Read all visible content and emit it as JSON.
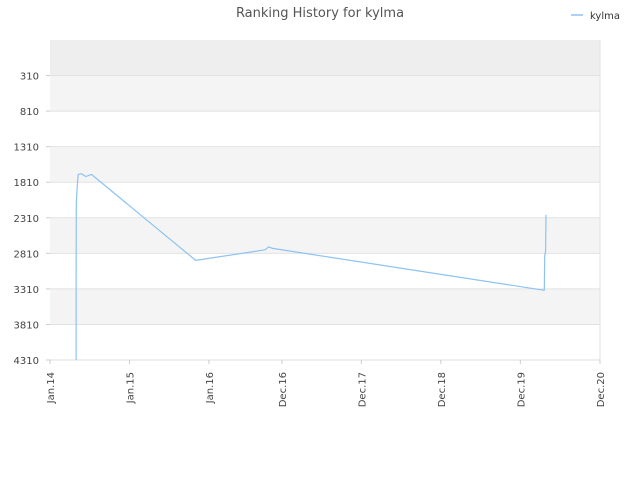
{
  "chart_data": {
    "type": "line",
    "title": "Ranking History for kylma",
    "xlabel": "",
    "ylabel": "",
    "x_tick_labels": [
      "Jan.14",
      "Jan.15",
      "Jan.16",
      "Dec.16",
      "Dec.17",
      "Dec.18",
      "Dec.19",
      "Dec.20"
    ],
    "x_tick_dates": [
      "2014-01-01",
      "2015-01-01",
      "2016-01-01",
      "2016-12-01",
      "2017-12-01",
      "2018-12-01",
      "2019-12-01",
      "2020-12-01"
    ],
    "y_tick_labels": [
      "310",
      "810",
      "1310",
      "1810",
      "2310",
      "2810",
      "3310",
      "3810",
      "4310"
    ],
    "y_ticks": [
      310,
      810,
      1310,
      1810,
      2310,
      2810,
      3310,
      3810,
      4310
    ],
    "ylim": [
      -190,
      4310
    ],
    "y_inverted": true,
    "grid": true,
    "legend_position": "top-right",
    "series": [
      {
        "name": "kylma",
        "color": "#8cc3f2",
        "points": [
          [
            "2014-05-01",
            4310
          ],
          [
            "2014-05-01",
            3300
          ],
          [
            "2014-05-02",
            2100
          ],
          [
            "2014-05-05",
            1920
          ],
          [
            "2014-05-10",
            1700
          ],
          [
            "2014-05-25",
            1690
          ],
          [
            "2014-06-15",
            1730
          ],
          [
            "2014-07-10",
            1700
          ],
          [
            "2015-11-01",
            2910
          ],
          [
            "2016-09-15",
            2760
          ],
          [
            "2016-10-01",
            2720
          ],
          [
            "2016-10-20",
            2740
          ],
          [
            "2020-03-20",
            3330
          ],
          [
            "2020-03-22",
            2850
          ],
          [
            "2020-03-26",
            2780
          ],
          [
            "2020-03-28",
            2270
          ]
        ]
      }
    ]
  }
}
